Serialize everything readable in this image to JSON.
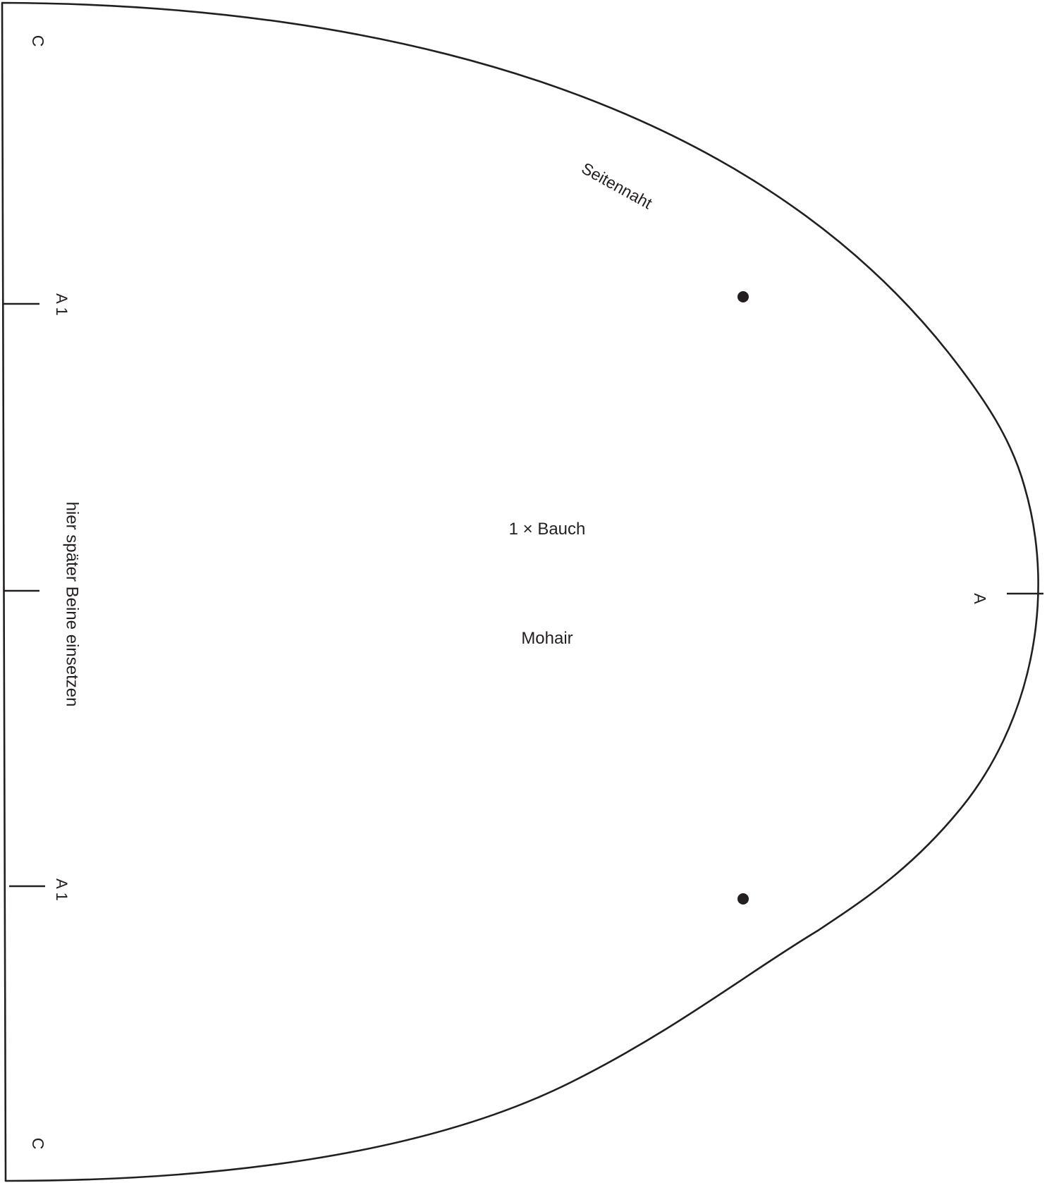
{
  "pattern": {
    "piece_label": "1 × Bauch",
    "material_label": "Mohair",
    "seam_label": "Seitennaht",
    "leg_note": "hier später Beine einsetzen",
    "markers": {
      "c_top": "C",
      "c_bottom": "C",
      "a1_upper": "A 1",
      "a1_lower": "A 1",
      "a_right": "A"
    },
    "colors": {
      "ink": "#231f20",
      "background": "#ffffff"
    }
  }
}
